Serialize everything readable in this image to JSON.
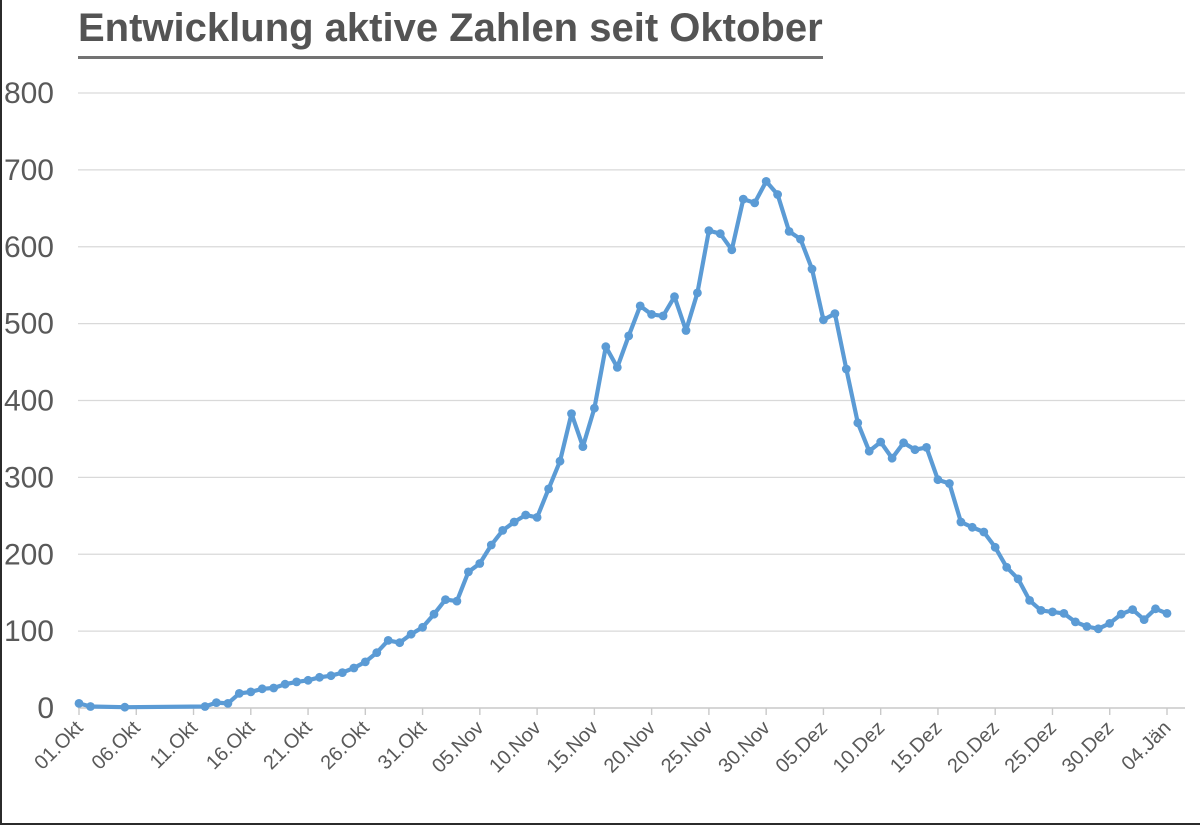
{
  "header": {
    "title": "Entwicklung aktive Zahlen seit Oktober"
  },
  "chart_data": {
    "type": "line",
    "title": "Entwicklung aktive Zahlen seit Oktober",
    "grid": "horizontal",
    "legend": "none",
    "marker": "circle",
    "ylim": [
      0,
      800
    ],
    "y_ticks": [
      0,
      100,
      200,
      300,
      400,
      500,
      600,
      700,
      800
    ],
    "x_tick_labels": [
      "01.Okt",
      "06.Okt",
      "11.Okt",
      "16.Okt",
      "21.Okt",
      "26.Okt",
      "31.Okt",
      "05.Nov",
      "10.Nov",
      "15.Nov",
      "20.Nov",
      "25.Nov",
      "30.Nov",
      "05.Dez",
      "10.Dez",
      "15.Dez",
      "20.Dez",
      "25.Dez",
      "30.Dez",
      "04.Jän"
    ],
    "x_tick_interval_days": 5,
    "x_total_days": 96,
    "frequency": "daily",
    "values": [
      6,
      2,
      null,
      null,
      1,
      null,
      null,
      null,
      null,
      null,
      null,
      2,
      7,
      6,
      19,
      21,
      25,
      26,
      31,
      34,
      36,
      40,
      42,
      46,
      52,
      60,
      72,
      88,
      85,
      96,
      105,
      122,
      141,
      139,
      177,
      188,
      212,
      231,
      242,
      251,
      248,
      285,
      321,
      383,
      340,
      390,
      470,
      443,
      484,
      523,
      512,
      510,
      535,
      491,
      540,
      621,
      617,
      596,
      662,
      657,
      685,
      668,
      620,
      610,
      571,
      505,
      513,
      441,
      371,
      334,
      346,
      325,
      345,
      336,
      339,
      297,
      292,
      242,
      235,
      229,
      209,
      183,
      168,
      140,
      127,
      125,
      123,
      112,
      106,
      103,
      110,
      122,
      128,
      115,
      129,
      123
    ],
    "colors": {
      "line": "#5b9bd5",
      "grid": "#d9d9d9",
      "axis": "#c9c9c9",
      "axis_text": "#595959",
      "title_text": "#545454",
      "title_underline": "#737373",
      "edge_border": "#2b2b2b"
    }
  }
}
